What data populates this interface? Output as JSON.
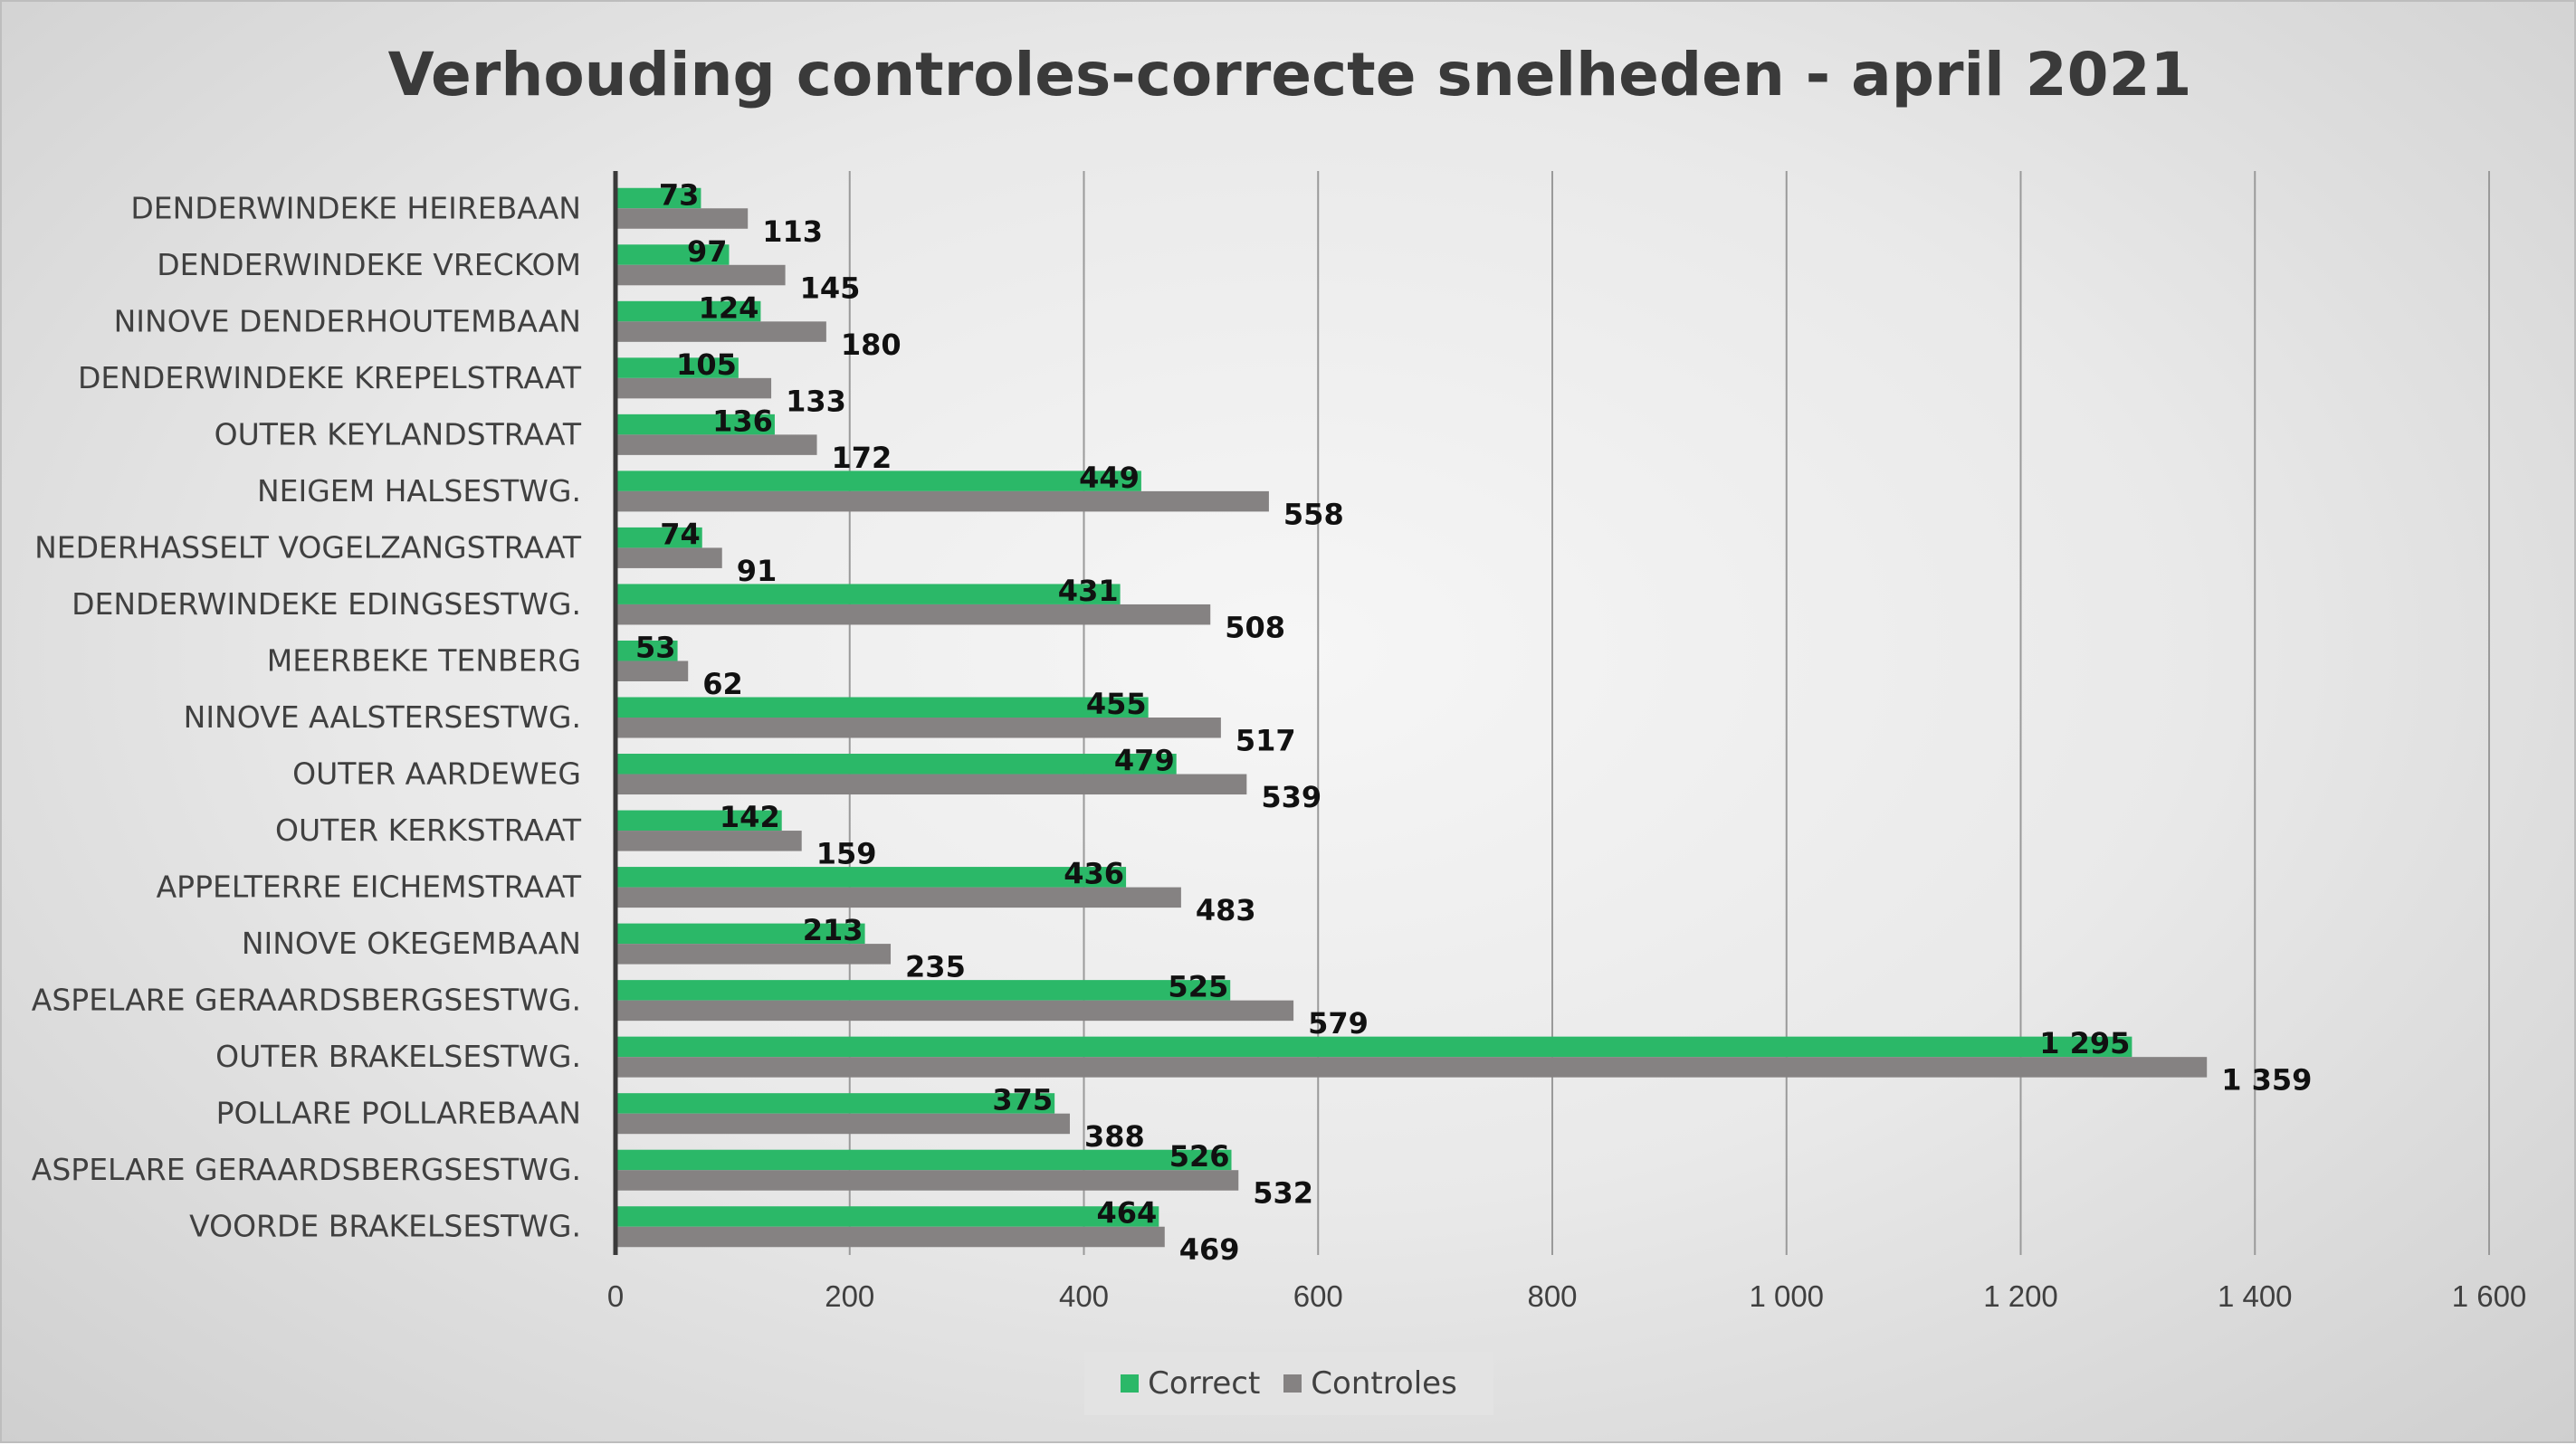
{
  "chart_data": {
    "type": "bar",
    "orientation": "horizontal",
    "title": "Verhouding controles-correcte snelheden - april 2021",
    "categories": [
      "DENDERWINDEKE HEIREBAAN",
      "DENDERWINDEKE VRECKOM",
      "NINOVE DENDERHOUTEMBAAN",
      "DENDERWINDEKE KREPELSTRAAT",
      "OUTER KEYLANDSTRAAT",
      "NEIGEM HALSESTWG.",
      "NEDERHASSELT VOGELZANGSTRAAT",
      "DENDERWINDEKE EDINGSESTWG.",
      "MEERBEKE TENBERG",
      "NINOVE AALSTERSESTWG.",
      "OUTER AARDEWEG",
      "OUTER KERKSTRAAT",
      "APPELTERRE EICHEMSTRAAT",
      "NINOVE OKEGEMBAAN",
      "ASPELARE GERAARDSBERGSESTWG.",
      "OUTER BRAKELSESTWG.",
      "POLLARE POLLAREBAAN",
      "ASPELARE GERAARDSBERGSESTWG.",
      "VOORDE BRAKELSESTWG."
    ],
    "series": [
      {
        "name": "Correct",
        "color": "#2bb868",
        "values": [
          73,
          97,
          124,
          105,
          136,
          449,
          74,
          431,
          53,
          455,
          479,
          142,
          436,
          213,
          525,
          1295,
          375,
          526,
          464
        ],
        "labels": [
          "73",
          "97",
          "124",
          "105",
          "136",
          "449",
          "74",
          "431",
          "53",
          "455",
          "479",
          "142",
          "436",
          "213",
          "525",
          "1 295",
          "375",
          "526",
          "464"
        ]
      },
      {
        "name": "Controles",
        "color": "#858282",
        "values": [
          113,
          145,
          180,
          133,
          172,
          558,
          91,
          508,
          62,
          517,
          539,
          159,
          483,
          235,
          579,
          1359,
          388,
          532,
          469
        ],
        "labels": [
          "113",
          "145",
          "180",
          "133",
          "172",
          "558",
          "91",
          "508",
          "62",
          "517",
          "539",
          "159",
          "483",
          "235",
          "579",
          "1 359",
          "388",
          "532",
          "469"
        ]
      }
    ],
    "xlim": [
      0,
      1600
    ],
    "xticks": [
      0,
      200,
      400,
      600,
      800,
      1000,
      1200,
      1400,
      1600
    ],
    "xtick_labels": [
      "0",
      "200",
      "400",
      "600",
      "800",
      "1 000",
      "1 200",
      "1 400",
      "1 600"
    ],
    "grid": "vertical",
    "legend_position": "bottom"
  }
}
